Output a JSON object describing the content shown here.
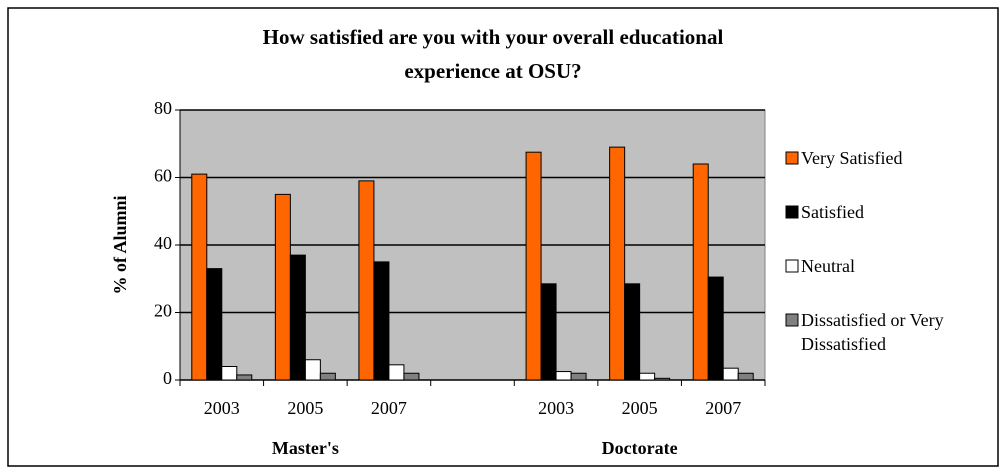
{
  "chart_data": {
    "type": "bar",
    "title": "How satisfied are you with your overall educational experience at OSU?",
    "ylabel": "% of Alumni",
    "categories": [
      "2003",
      "2005",
      "2007",
      null,
      "2003",
      "2005",
      "2007"
    ],
    "groups": [
      "Master's",
      "Doctorate"
    ],
    "series": [
      {
        "name": "Very Satisfied",
        "color": "#ff6600",
        "values": [
          61,
          55,
          59,
          null,
          67.5,
          69,
          64
        ]
      },
      {
        "name": "Satisfied",
        "color": "#000000",
        "values": [
          33,
          37,
          35,
          null,
          28.5,
          28.5,
          30.5
        ]
      },
      {
        "name": "Neutral",
        "color": "#ffffff",
        "values": [
          4,
          6,
          4.5,
          null,
          2.5,
          2,
          3.5
        ]
      },
      {
        "name": "Dissatisfied or Very Dissatisfied",
        "color": "#808080",
        "values": [
          1.5,
          2,
          2,
          null,
          2,
          0.5,
          2
        ]
      }
    ],
    "ylim": [
      0,
      80
    ],
    "yticks": [
      0,
      20,
      40,
      60,
      80
    ],
    "grid": true,
    "legend": "right"
  }
}
